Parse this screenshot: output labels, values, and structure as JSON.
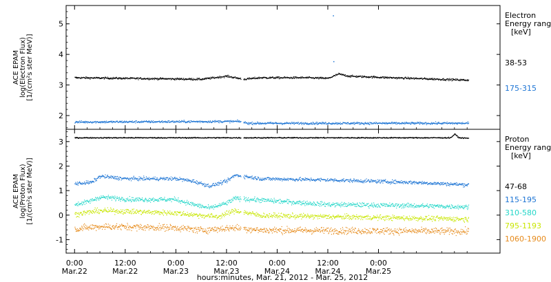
{
  "chart_data": [
    {
      "type": "scatter",
      "ylabel_lines": [
        "ACE EPAM",
        "log(Electron Flux)",
        "[1/(cm²s ster MeV)]"
      ],
      "ylim": [
        1.55,
        5.6
      ],
      "yticks": [
        2,
        3,
        4,
        5
      ],
      "legend_title_lines": [
        "Electron",
        "Energy range",
        "[keV]"
      ],
      "grid": false,
      "series": [
        {
          "name": "38-53",
          "color": "#000000",
          "baseline": 3.25,
          "noise": 0.03,
          "segments": [
            [
              0,
              39.4
            ],
            [
              40.0,
              93.3
            ]
          ],
          "shape": [
            [
              0,
              0
            ],
            [
              30,
              -0.05
            ],
            [
              36,
              0.05
            ],
            [
              40,
              -0.05
            ],
            [
              44,
              0.0
            ],
            [
              55,
              0.0
            ],
            [
              60,
              -0.02
            ],
            [
              62.5,
              0.12
            ],
            [
              65,
              0.05
            ],
            [
              75,
              0.0
            ],
            [
              93.3,
              -0.08
            ]
          ]
        },
        {
          "name": "175-315",
          "color": "#1c74d4",
          "baseline": 1.8,
          "noise": 0.035,
          "segments": [
            [
              0,
              39.4
            ],
            [
              40.0,
              93.3
            ]
          ],
          "shape": [
            [
              0,
              0
            ],
            [
              39,
              0.02
            ],
            [
              41,
              -0.04
            ],
            [
              93.3,
              -0.04
            ]
          ]
        }
      ],
      "outliers": [
        {
          "x": 61.2,
          "y": 5.28
        },
        {
          "x": 61.3,
          "y": 3.78
        }
      ]
    },
    {
      "type": "scatter",
      "ylabel_lines": [
        "ACE EPAM",
        "log(Proton Flux)",
        "[1/(cm²s ster MeV)]"
      ],
      "ylim": [
        -1.55,
        3.5
      ],
      "yticks": [
        -1,
        0,
        1,
        2,
        3
      ],
      "legend_title_lines": [
        "Proton",
        "Energy range",
        "[keV]"
      ],
      "grid": false,
      "series": [
        {
          "name": "47-68",
          "color": "#000000",
          "baseline": 3.17,
          "noise": 0.02,
          "segments": [
            [
              0,
              39.4
            ],
            [
              40.0,
              93.3
            ]
          ],
          "shape": [
            [
              0,
              0
            ],
            [
              89,
              0.0
            ],
            [
              90,
              0.15
            ],
            [
              91,
              0.0
            ],
            [
              93.3,
              -0.02
            ]
          ]
        },
        {
          "name": "115-195",
          "color": "#1c74d4",
          "baseline": 1.3,
          "noise": 0.07,
          "segments": [
            [
              0,
              39.4
            ],
            [
              40.0,
              93.3
            ]
          ],
          "shape": [
            [
              0,
              0
            ],
            [
              4,
              0.05
            ],
            [
              6,
              0.3
            ],
            [
              12,
              0.2
            ],
            [
              24,
              0.2
            ],
            [
              28,
              0.1
            ],
            [
              32,
              -0.1
            ],
            [
              36,
              0.1
            ],
            [
              38,
              0.35
            ],
            [
              40,
              0.3
            ],
            [
              44,
              0.2
            ],
            [
              60,
              0.15
            ],
            [
              80,
              0.05
            ],
            [
              93.3,
              -0.05
            ]
          ]
        },
        {
          "name": "310-580",
          "color": "#22d6c8",
          "baseline": 0.45,
          "noise": 0.09,
          "segments": [
            [
              0,
              39.4
            ],
            [
              40.0,
              93.3
            ]
          ],
          "shape": [
            [
              0,
              0
            ],
            [
              3,
              0.1
            ],
            [
              6,
              0.3
            ],
            [
              14,
              0.2
            ],
            [
              24,
              0.2
            ],
            [
              28,
              0.0
            ],
            [
              32,
              -0.15
            ],
            [
              36,
              0.05
            ],
            [
              38,
              0.25
            ],
            [
              42,
              0.2
            ],
            [
              60,
              0.0
            ],
            [
              80,
              -0.05
            ],
            [
              93.3,
              -0.1
            ]
          ]
        },
        {
          "name": "795-1193",
          "color": "#c8e600",
          "baseline": 0.05,
          "noise": 0.1,
          "segments": [
            [
              0,
              39.4
            ],
            [
              40.0,
              93.3
            ]
          ],
          "shape": [
            [
              0,
              0
            ],
            [
              6,
              0.15
            ],
            [
              24,
              0.05
            ],
            [
              30,
              -0.05
            ],
            [
              34,
              -0.1
            ],
            [
              38,
              0.15
            ],
            [
              44,
              -0.05
            ],
            [
              93.3,
              -0.2
            ]
          ]
        },
        {
          "name": "1060-1900",
          "color": "#e68a1a",
          "baseline": -0.55,
          "noise": 0.13,
          "segments": [
            [
              0,
              39.4
            ],
            [
              40.0,
              93.3
            ]
          ],
          "shape": [
            [
              0,
              0
            ],
            [
              6,
              0.1
            ],
            [
              24,
              0.05
            ],
            [
              30,
              -0.05
            ],
            [
              38,
              0.05
            ],
            [
              44,
              -0.05
            ],
            [
              93.3,
              -0.1
            ]
          ]
        }
      ],
      "outliers": []
    }
  ],
  "x_axis": {
    "xlim": [
      -2.0,
      100.8
    ],
    "ticks": [
      {
        "x": 0,
        "time": "0:00",
        "date": "Mar.22"
      },
      {
        "x": 12,
        "time": "12:00",
        "date": "Mar.22"
      },
      {
        "x": 24,
        "time": "0:00",
        "date": "Mar.23"
      },
      {
        "x": 36,
        "time": "12:00",
        "date": "Mar.23"
      },
      {
        "x": 48,
        "time": "0:00",
        "date": "Mar.24"
      },
      {
        "x": 60,
        "time": "12:00",
        "date": "Mar.24"
      },
      {
        "x": 72,
        "time": "0:00",
        "date": "Mar.25"
      }
    ],
    "label": "hours:minutes, Mar. 21, 2012 - Mar. 25, 2012"
  }
}
